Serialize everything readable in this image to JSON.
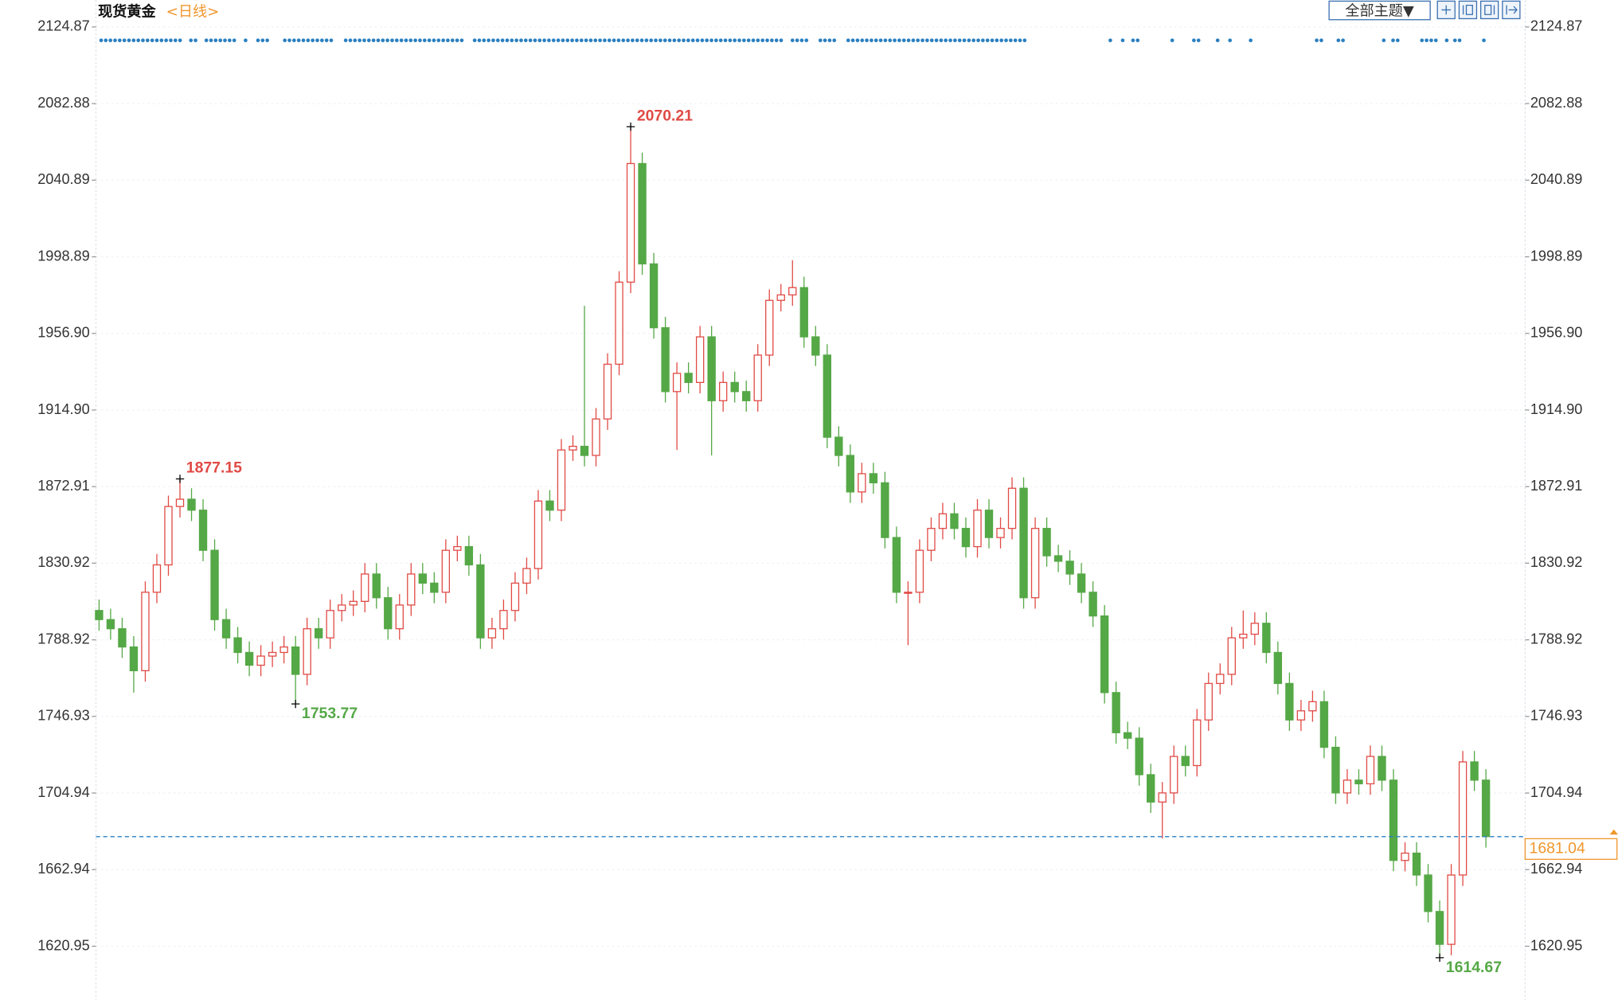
{
  "toolbar": {
    "theme": "全部主题▼"
  },
  "chart_data": {
    "type": "candlestick",
    "title": "现货黄金",
    "subtitle": "<日线>",
    "up_color": "#e04a45",
    "down_color": "#55a846",
    "price_line_color": "#2a7fc0",
    "price_label_color": "#f0962c",
    "ylim": [
      1593.8,
      2139.6
    ],
    "yticks": [
      2124.87,
      2082.88,
      2040.89,
      1998.89,
      {
        "value": 1956.9,
        "label": "1956.90"
      },
      {
        "value": 1914.9,
        "label": "1914.90"
      },
      1872.91,
      1830.92,
      1788.92,
      1746.93,
      1704.94,
      1662.94,
      1620.95
    ],
    "grid": true,
    "open": [
      1805,
      1800,
      1795,
      1785,
      1772,
      1815,
      1830,
      1862,
      1866,
      1860,
      1838,
      1800,
      1790,
      1782,
      1775,
      1780,
      1782,
      1785,
      1770,
      1795,
      1790,
      1805,
      1808,
      1810,
      1825,
      1812,
      1795,
      1808,
      1825,
      1820,
      1815,
      1838,
      1840,
      1830,
      1790,
      1795,
      1805,
      1820,
      1828,
      1865,
      1860,
      1893,
      1895,
      1890,
      1910,
      1940,
      1985,
      2050,
      1995,
      1960,
      1925,
      1935,
      1930,
      1955,
      1920,
      1930,
      1925,
      1920,
      1945,
      1975,
      1978,
      1982,
      1955,
      1945,
      1900,
      1890,
      1870,
      1880,
      1875,
      1845,
      1815,
      1815,
      1838,
      1850,
      1858,
      1850,
      1840,
      1860,
      1845,
      1850,
      1872,
      1812,
      1850,
      1835,
      1832,
      1825,
      1815,
      1802,
      1760,
      1738,
      1735,
      1715,
      1700,
      1705,
      1725,
      1720,
      1745,
      1765,
      1770,
      1790,
      1792,
      1798,
      1782,
      1765,
      1745,
      1750,
      1755,
      1730,
      1705,
      1712,
      1710,
      1725,
      1712,
      1668,
      1672,
      1660,
      1640,
      1622,
      1660,
      1722,
      1712
    ],
    "high": [
      1811,
      1806,
      1801,
      1791,
      1821,
      1836,
      1868,
      1877.15,
      1872,
      1866,
      1844,
      1806,
      1796,
      1788,
      1786,
      1788,
      1791,
      1791,
      1801,
      1801,
      1811,
      1814,
      1816,
      1831,
      1831,
      1818,
      1814,
      1831,
      1831,
      1826,
      1844,
      1846,
      1846,
      1836,
      1801,
      1811,
      1826,
      1834,
      1871,
      1871,
      1899,
      1901,
      1972,
      1916,
      1946,
      1991,
      2070.21,
      2056,
      2001,
      1966,
      1941,
      1941,
      1961,
      1961,
      1936,
      1936,
      1931,
      1951,
      1981,
      1984,
      1997,
      1988,
      1961,
      1951,
      1906,
      1896,
      1886,
      1886,
      1881,
      1851,
      1821,
      1844,
      1856,
      1864,
      1864,
      1856,
      1866,
      1866,
      1856,
      1878,
      1878,
      1856,
      1856,
      1841,
      1838,
      1831,
      1821,
      1808,
      1766,
      1744,
      1741,
      1721,
      1711,
      1731,
      1731,
      1751,
      1771,
      1776,
      1796,
      1805,
      1804,
      1804,
      1788,
      1771,
      1756,
      1761,
      1761,
      1736,
      1718,
      1718,
      1731,
      1731,
      1718,
      1678,
      1678,
      1666,
      1646,
      1666,
      1728,
      1728,
      1718
    ],
    "low": [
      1794,
      1789,
      1779,
      1760,
      1766,
      1809,
      1824,
      1856,
      1854,
      1832,
      1794,
      1784,
      1776,
      1769,
      1769,
      1774,
      1776,
      1753.77,
      1764,
      1784,
      1784,
      1799,
      1802,
      1804,
      1806,
      1789,
      1789,
      1802,
      1814,
      1809,
      1809,
      1832,
      1824,
      1784,
      1784,
      1789,
      1799,
      1814,
      1822,
      1854,
      1854,
      1887,
      1884,
      1884,
      1904,
      1934,
      1979,
      1989,
      1954,
      1919,
      1893,
      1924,
      1924,
      1890,
      1914,
      1919,
      1914,
      1914,
      1939,
      1969,
      1972,
      1949,
      1939,
      1894,
      1884,
      1864,
      1864,
      1869,
      1839,
      1809,
      1786,
      1809,
      1832,
      1844,
      1844,
      1834,
      1834,
      1839,
      1839,
      1844,
      1806,
      1806,
      1829,
      1826,
      1819,
      1809,
      1796,
      1754,
      1732,
      1729,
      1709,
      1694,
      1680,
      1699,
      1714,
      1714,
      1739,
      1759,
      1764,
      1784,
      1786,
      1776,
      1759,
      1739,
      1739,
      1744,
      1724,
      1699,
      1699,
      1704,
      1704,
      1706,
      1662,
      1662,
      1654,
      1634,
      1614.67,
      1616,
      1654,
      1706,
      1675
    ],
    "close": [
      1800,
      1795,
      1785,
      1772,
      1815,
      1830,
      1862,
      1866,
      1860,
      1838,
      1800,
      1790,
      1782,
      1775,
      1780,
      1782,
      1785,
      1770,
      1795,
      1790,
      1805,
      1808,
      1810,
      1825,
      1812,
      1795,
      1808,
      1825,
      1820,
      1815,
      1838,
      1840,
      1830,
      1790,
      1795,
      1805,
      1820,
      1828,
      1865,
      1860,
      1893,
      1895,
      1890,
      1910,
      1940,
      1985,
      2050,
      1995,
      1960,
      1925,
      1935,
      1930,
      1955,
      1920,
      1930,
      1925,
      1920,
      1945,
      1975,
      1978,
      1982,
      1955,
      1945,
      1900,
      1890,
      1870,
      1880,
      1875,
      1845,
      1815,
      1815,
      1838,
      1850,
      1858,
      1850,
      1840,
      1860,
      1845,
      1850,
      1872,
      1812,
      1850,
      1835,
      1832,
      1825,
      1815,
      1802,
      1760,
      1738,
      1735,
      1715,
      1700,
      1705,
      1725,
      1720,
      1745,
      1765,
      1770,
      1790,
      1792,
      1798,
      1782,
      1765,
      1745,
      1750,
      1755,
      1730,
      1705,
      1712,
      1710,
      1725,
      1712,
      1668,
      1672,
      1660,
      1640,
      1622,
      1660,
      1722,
      1712,
      1681.04
    ]
  }
}
